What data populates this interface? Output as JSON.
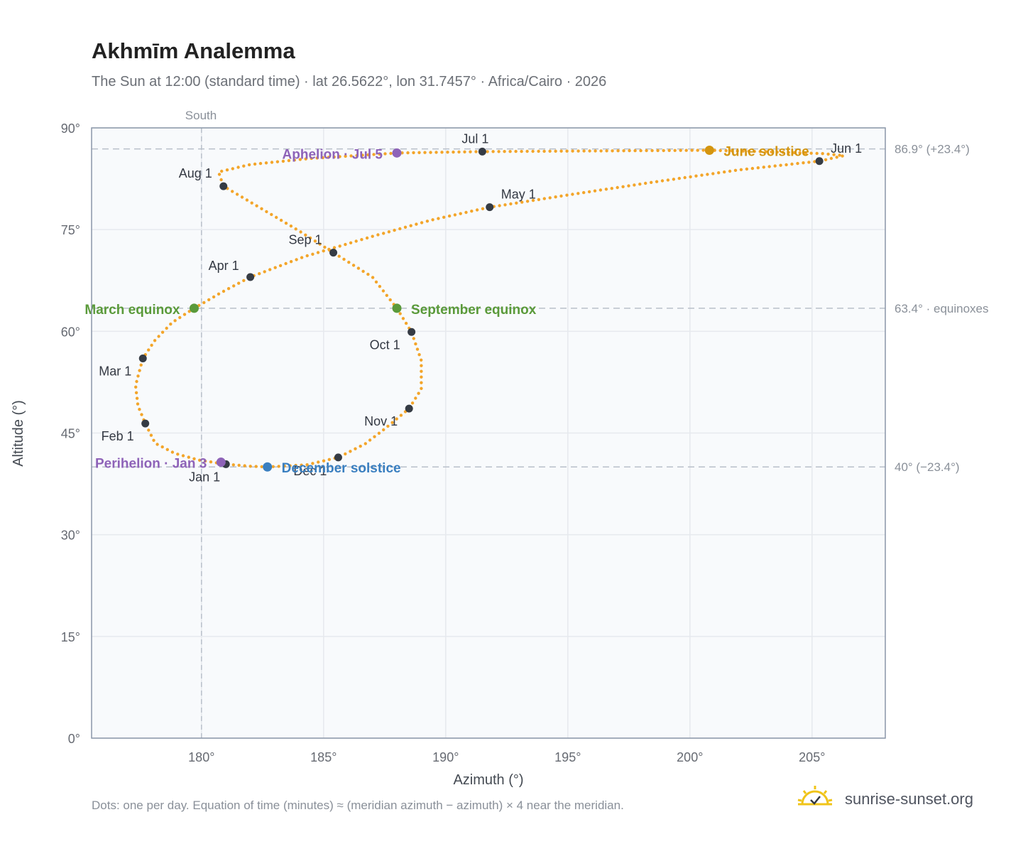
{
  "header": {
    "title": "Akhmīm Analemma",
    "subtitle": "The Sun at 12:00 (standard time) · lat 26.5622°, lon 31.7457° · Africa/Cairo · 2026"
  },
  "footer": {
    "note": "Dots: one per day. Equation of time (minutes) ≈ (meridian azimuth − azimuth) × 4 near the meridian.",
    "brand": "sunrise-sunset.org"
  },
  "colors": {
    "curve": "#f3a52a",
    "month_marker": "#353b44",
    "june_solstice": "#d4950f",
    "december_solstice": "#3a7fc0",
    "equinox": "#5a9a3a",
    "aphelion_perihelion": "#8e63b8",
    "grid": "#e6e9ee",
    "plot_background": "#f8fafc",
    "reference_line": "#b9c0ca",
    "brand_sun": "#f0c419"
  },
  "chart_data": {
    "type": "scatter",
    "title": "Akhmīm Analemma",
    "xlabel": "Azimuth (°)",
    "ylabel": "Altitude (°)",
    "xlim": [
      175.5,
      208
    ],
    "ylim": [
      0,
      90
    ],
    "x_ticks": [
      180,
      185,
      190,
      195,
      200,
      205
    ],
    "x_tick_labels": [
      "180°",
      "185°",
      "190°",
      "195°",
      "200°",
      "205°"
    ],
    "y_ticks": [
      0,
      15,
      30,
      45,
      60,
      75,
      90
    ],
    "y_tick_labels": [
      "0°",
      "15°",
      "30°",
      "45°",
      "60°",
      "75°",
      "90°"
    ],
    "grid": true,
    "meridian": {
      "azimuth": 180,
      "label": "South"
    },
    "reference_lines": [
      {
        "altitude": 86.9,
        "label": "86.9° (+23.4°)"
      },
      {
        "altitude": 63.4,
        "label": "63.4° · equinoxes"
      },
      {
        "altitude": 40.0,
        "label": "40° (−23.4°)"
      }
    ],
    "monthly_points": [
      {
        "label": "Jan 1",
        "azimuth": 181.0,
        "altitude": 40.4
      },
      {
        "label": "Feb 1",
        "azimuth": 177.7,
        "altitude": 46.4
      },
      {
        "label": "Mar 1",
        "azimuth": 177.6,
        "altitude": 56.0
      },
      {
        "label": "Apr 1",
        "azimuth": 182.0,
        "altitude": 68.0
      },
      {
        "label": "May 1",
        "azimuth": 191.8,
        "altitude": 78.3
      },
      {
        "label": "Jun 1",
        "azimuth": 205.3,
        "altitude": 85.1
      },
      {
        "label": "Jul 1",
        "azimuth": 191.5,
        "altitude": 86.5
      },
      {
        "label": "Aug 1",
        "azimuth": 180.9,
        "altitude": 81.4
      },
      {
        "label": "Sep 1",
        "azimuth": 185.4,
        "altitude": 71.6
      },
      {
        "label": "Oct 1",
        "azimuth": 188.6,
        "altitude": 59.9
      },
      {
        "label": "Nov 1",
        "azimuth": 188.5,
        "altitude": 48.6
      },
      {
        "label": "Dec 1",
        "azimuth": 185.6,
        "altitude": 41.4
      }
    ],
    "events": [
      {
        "label": "June solstice",
        "azimuth": 200.8,
        "altitude": 86.7,
        "color": "#d4950f"
      },
      {
        "label": "December solstice",
        "azimuth": 182.7,
        "altitude": 40.0,
        "color": "#3a7fc0"
      },
      {
        "label": "March equinox",
        "azimuth": 179.7,
        "altitude": 63.4,
        "color": "#5a9a3a"
      },
      {
        "label": "September equinox",
        "azimuth": 188.0,
        "altitude": 63.4,
        "color": "#5a9a3a"
      },
      {
        "label": "Aphelion · Jul 5",
        "azimuth": 188.0,
        "altitude": 86.3,
        "color": "#8e63b8"
      },
      {
        "label": "Perihelion · Jan 3",
        "azimuth": 180.8,
        "altitude": 40.7,
        "color": "#8e63b8"
      }
    ],
    "daily_path": [
      [
        182.7,
        40.0
      ],
      [
        182.0,
        40.1
      ],
      [
        181.0,
        40.4
      ],
      [
        179.9,
        41.0
      ],
      [
        178.9,
        42.0
      ],
      [
        178.1,
        43.5
      ],
      [
        177.7,
        46.4
      ],
      [
        177.4,
        49.0
      ],
      [
        177.3,
        52.0
      ],
      [
        177.6,
        56.0
      ],
      [
        178.1,
        58.7
      ],
      [
        178.8,
        61.3
      ],
      [
        179.7,
        63.4
      ],
      [
        180.8,
        65.7
      ],
      [
        182.0,
        68.0
      ],
      [
        184.2,
        71.0
      ],
      [
        187.0,
        74.0
      ],
      [
        189.4,
        76.4
      ],
      [
        191.8,
        78.3
      ],
      [
        195.0,
        80.1
      ],
      [
        198.5,
        82.0
      ],
      [
        202.0,
        83.8
      ],
      [
        205.3,
        85.1
      ],
      [
        206.3,
        85.9
      ],
      [
        205.5,
        86.2
      ],
      [
        203.0,
        86.5
      ],
      [
        200.8,
        86.7
      ],
      [
        196.0,
        86.6
      ],
      [
        191.5,
        86.5
      ],
      [
        188.0,
        86.3
      ],
      [
        184.5,
        85.5
      ],
      [
        182.0,
        84.6
      ],
      [
        180.7,
        83.5
      ],
      [
        180.9,
        81.4
      ],
      [
        182.5,
        78.0
      ],
      [
        184.0,
        74.8
      ],
      [
        185.4,
        71.6
      ],
      [
        187.0,
        68.0
      ],
      [
        188.0,
        63.4
      ],
      [
        188.6,
        59.9
      ],
      [
        189.0,
        55.7
      ],
      [
        189.0,
        51.5
      ],
      [
        188.5,
        48.6
      ],
      [
        187.5,
        45.6
      ],
      [
        186.7,
        43.4
      ],
      [
        185.6,
        41.4
      ],
      [
        184.3,
        40.3
      ],
      [
        182.7,
        40.0
      ]
    ]
  }
}
